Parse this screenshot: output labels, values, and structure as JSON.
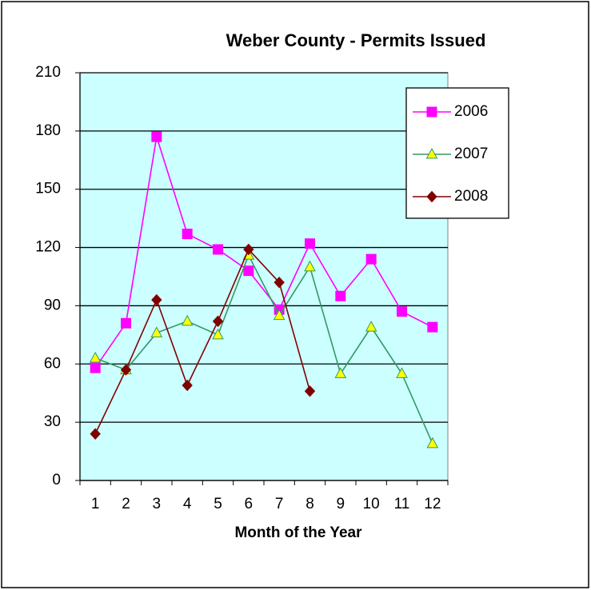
{
  "chart_data": {
    "type": "line",
    "title": "Weber County - Permits Issued",
    "x_label": "Month of the Year",
    "categories": [
      "1",
      "2",
      "3",
      "4",
      "5",
      "6",
      "7",
      "8",
      "9",
      "10",
      "11",
      "12"
    ],
    "series": [
      {
        "name": "2006",
        "color": "#ff00ff",
        "marker": "square",
        "marker_color": "#ff00ff",
        "values": [
          58,
          81,
          177,
          127,
          119,
          108,
          88,
          122,
          95,
          114,
          87,
          79
        ]
      },
      {
        "name": "2007",
        "color": "#339966",
        "marker": "triangle",
        "marker_color": "#ffff00",
        "values": [
          63,
          57,
          76,
          82,
          75,
          116,
          85,
          110,
          55,
          79,
          55,
          19
        ]
      },
      {
        "name": "2008",
        "color": "#800000",
        "marker": "diamond",
        "marker_color": "#800000",
        "values": [
          24,
          57,
          93,
          49,
          82,
          119,
          102,
          46,
          null,
          null,
          null,
          null
        ]
      }
    ],
    "ylim": [
      0,
      210
    ],
    "yticks": [
      0,
      30,
      60,
      90,
      120,
      150,
      180,
      210
    ],
    "grid": true,
    "plot_background": "#ccffff",
    "legend": "upper right"
  }
}
